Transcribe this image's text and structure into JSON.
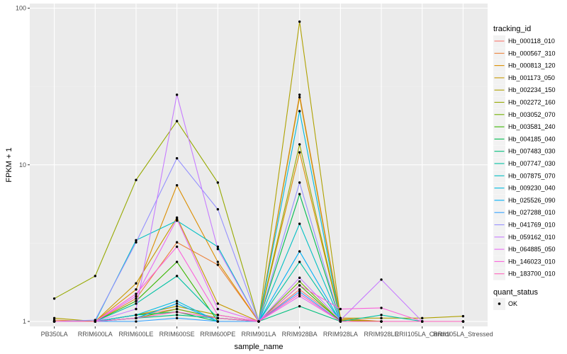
{
  "chart_data": {
    "type": "line",
    "title": "",
    "xlabel": "sample_name",
    "ylabel": "FPKM + 1",
    "y_scale": "log10",
    "ylim": [
      0.93,
      107
    ],
    "y_ticks": [
      {
        "value": 1,
        "label": "1"
      },
      {
        "value": 10,
        "label": "10"
      },
      {
        "value": 100,
        "label": "100"
      }
    ],
    "grid": true,
    "legend_position": "right",
    "categories": [
      "PB350LA",
      "RRIM600LA",
      "RRIM600LE",
      "RRIM600SE",
      "RRIM600PE",
      "RRIM901LA",
      "RRIM928BA",
      "RRIM928LA",
      "RRIM928LE",
      "RRII105LA_Control",
      "RRII105LA_Stressed"
    ],
    "legend": {
      "title": "tracking_id",
      "point_title": "quant_status",
      "point_entries": [
        "OK"
      ]
    },
    "series": [
      {
        "name": "Hb_000118_010",
        "color": "#F8766D",
        "values": [
          1.0,
          1.0,
          1.1,
          1.2,
          1.05,
          1.0,
          1.6,
          1.02,
          1.0,
          1.0,
          1.0
        ]
      },
      {
        "name": "Hb_000567_310",
        "color": "#EC8239",
        "values": [
          1.02,
          1.0,
          1.4,
          3.2,
          2.3,
          1.0,
          28.0,
          1.05,
          1.0,
          1.0,
          1.0
        ]
      },
      {
        "name": "Hb_000813_120",
        "color": "#DB8E00",
        "values": [
          1.0,
          1.0,
          1.6,
          7.4,
          2.4,
          1.0,
          12.0,
          1.02,
          1.0,
          1.0,
          1.0
        ]
      },
      {
        "name": "Hb_001173_050",
        "color": "#C79800",
        "values": [
          1.0,
          1.0,
          1.75,
          4.6,
          1.3,
          1.0,
          27.0,
          1.03,
          1.0,
          1.0,
          1.0
        ]
      },
      {
        "name": "Hb_002234_150",
        "color": "#AFA100",
        "values": [
          1.05,
          1.0,
          1.1,
          1.25,
          1.1,
          1.0,
          82.0,
          1.05,
          1.05,
          1.05,
          1.08
        ]
      },
      {
        "name": "Hb_002272_160",
        "color": "#96A900",
        "values": [
          1.4,
          1.95,
          8.0,
          19.0,
          7.7,
          1.0,
          13.5,
          1.02,
          1.0,
          1.0,
          1.0
        ]
      },
      {
        "name": "Hb_003052_070",
        "color": "#72B000",
        "values": [
          1.0,
          1.0,
          1.05,
          1.2,
          1.05,
          1.0,
          1.8,
          1.0,
          1.0,
          1.0,
          1.0
        ]
      },
      {
        "name": "Hb_003581_240",
        "color": "#39B600",
        "values": [
          1.0,
          1.0,
          1.35,
          2.4,
          1.0,
          1.0,
          1.7,
          1.0,
          1.0,
          1.0,
          1.0
        ]
      },
      {
        "name": "Hb_004185_040",
        "color": "#00BB4E",
        "values": [
          1.0,
          1.0,
          1.1,
          1.15,
          1.0,
          1.0,
          6.5,
          1.0,
          1.0,
          1.0,
          1.0
        ]
      },
      {
        "name": "Hb_007483_030",
        "color": "#00BF7D",
        "values": [
          1.0,
          1.0,
          1.05,
          1.1,
          1.05,
          1.0,
          1.25,
          1.0,
          1.0,
          1.0,
          1.0
        ]
      },
      {
        "name": "Hb_007747_030",
        "color": "#00C1A3",
        "values": [
          1.0,
          1.0,
          1.3,
          1.95,
          1.05,
          1.0,
          2.4,
          1.0,
          1.1,
          1.0,
          1.0
        ]
      },
      {
        "name": "Hb_007875_070",
        "color": "#00BFC4",
        "values": [
          1.0,
          1.0,
          3.3,
          4.4,
          3.0,
          1.0,
          4.2,
          1.0,
          1.0,
          1.0,
          1.0
        ]
      },
      {
        "name": "Hb_009230_040",
        "color": "#00BAE0",
        "values": [
          1.0,
          1.0,
          1.1,
          1.35,
          1.0,
          1.0,
          22.0,
          1.0,
          1.0,
          1.0,
          1.0
        ]
      },
      {
        "name": "Hb_025526_090",
        "color": "#00B0F6",
        "values": [
          1.0,
          1.0,
          1.05,
          1.3,
          1.0,
          1.0,
          2.8,
          1.0,
          1.0,
          1.0,
          1.0
        ]
      },
      {
        "name": "Hb_027288_010",
        "color": "#35A2FF",
        "values": [
          1.0,
          1.0,
          1.0,
          1.05,
          1.0,
          1.0,
          1.55,
          1.0,
          1.0,
          1.0,
          1.0
        ]
      },
      {
        "name": "Hb_041769_010",
        "color": "#9590FF",
        "values": [
          1.0,
          1.02,
          3.2,
          11.0,
          5.2,
          1.0,
          7.7,
          1.0,
          1.0,
          1.0,
          1.0
        ]
      },
      {
        "name": "Hb_059162_010",
        "color": "#C77CFF",
        "values": [
          1.0,
          1.0,
          1.2,
          28.0,
          2.9,
          1.0,
          1.9,
          1.02,
          1.85,
          1.0,
          1.0
        ]
      },
      {
        "name": "Hb_064885_050",
        "color": "#E76BF3",
        "values": [
          1.0,
          1.0,
          1.45,
          4.5,
          1.2,
          1.0,
          1.45,
          1.0,
          1.0,
          1.0,
          1.0
        ]
      },
      {
        "name": "Hb_146023_010",
        "color": "#FA62DB",
        "values": [
          1.0,
          1.0,
          1.5,
          3.0,
          1.1,
          1.0,
          1.7,
          1.2,
          1.22,
          1.0,
          1.0
        ]
      },
      {
        "name": "Hb_183700_010",
        "color": "#FF62BC",
        "values": [
          1.0,
          1.0,
          1.05,
          1.15,
          1.05,
          1.0,
          1.5,
          1.0,
          1.0,
          1.0,
          1.0
        ]
      }
    ]
  }
}
